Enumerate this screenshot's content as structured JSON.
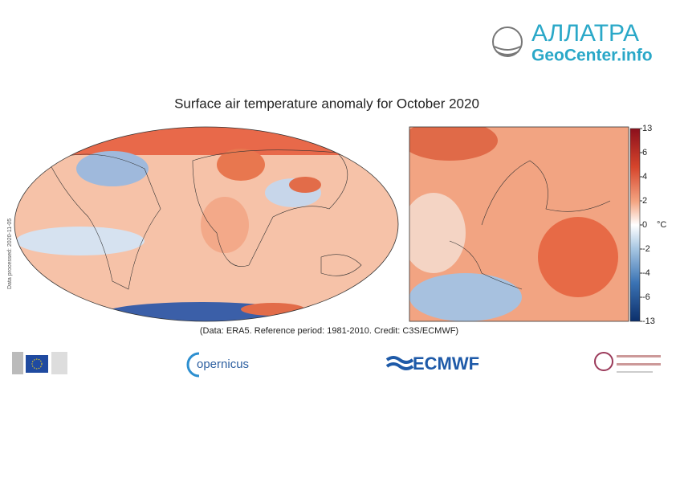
{
  "logo": {
    "name": "АЛЛАТРА",
    "site": "GeoCenter.info"
  },
  "title": "Surface air temperature anomaly for October 2020",
  "side_note": "Data processed: 2020-11-05",
  "credit": "(Data: ERA5.  Reference period: 1981-2010.  Credit: C3S/ECMWF)",
  "colorbar": {
    "ticks": [
      13,
      6,
      4,
      2,
      0,
      -2,
      -4,
      -6,
      -13
    ],
    "unit": "°C"
  },
  "partners": [
    "opernicus",
    "ECMWF"
  ]
}
